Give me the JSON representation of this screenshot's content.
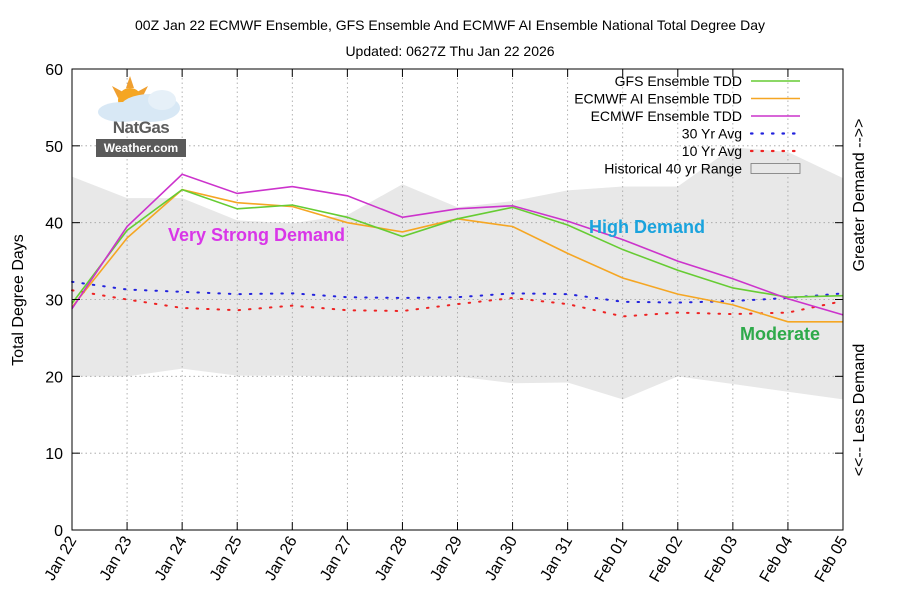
{
  "title": "00Z Jan 22 ECMWF Ensemble, GFS Ensemble And ECMWF AI Ensemble National Total Degree Day",
  "subtitle": "Updated: 0627Z Thu Jan 22 2026",
  "logo": {
    "line1": "NatGas",
    "line2": "Weather.com"
  },
  "annotations": {
    "very_strong": "Very Strong Demand",
    "high": "High Demand",
    "moderate": "Moderate",
    "greater": "Greater Demand -->>",
    "less": "<<-- Less Demand"
  },
  "colors": {
    "gfs": "#66cc33",
    "ecmwf_ai": "#f5a623",
    "ecmwf": "#cc33cc",
    "avg30": "#2222dd",
    "avg10": "#ee2222",
    "range": "#e8e8e8",
    "very_strong": "#d936e8",
    "high": "#1aa3dd",
    "moderate": "#2eaa4a"
  },
  "chart_data": {
    "type": "line",
    "categories": [
      "Jan 22",
      "Jan 23",
      "Jan 24",
      "Jan 25",
      "Jan 26",
      "Jan 27",
      "Jan 28",
      "Jan 29",
      "Jan 30",
      "Jan 31",
      "Feb 01",
      "Feb 02",
      "Feb 03",
      "Feb 04",
      "Feb 05"
    ],
    "ylabel": "Total Degree Days",
    "ylim": [
      0,
      60
    ],
    "yticks": [
      0,
      10,
      20,
      30,
      40,
      50,
      60
    ],
    "grid": true,
    "legend_position": "top-right",
    "series": [
      {
        "name": "GFS Ensemble TDD",
        "style": "solid",
        "values": [
          29.5,
          39.0,
          44.3,
          41.8,
          42.3,
          40.7,
          38.2,
          40.5,
          42.0,
          39.7,
          36.5,
          33.8,
          31.5,
          30.3,
          30.5
        ]
      },
      {
        "name": "ECMWF AI Ensemble TDD",
        "style": "solid",
        "values": [
          29.0,
          38.0,
          44.3,
          42.6,
          42.1,
          40.0,
          38.8,
          40.5,
          39.5,
          36.0,
          32.8,
          30.7,
          29.3,
          27.1,
          27.1
        ]
      },
      {
        "name": "ECMWF Ensemble TDD",
        "style": "solid",
        "values": [
          28.8,
          39.5,
          46.3,
          43.8,
          44.7,
          43.5,
          40.7,
          41.8,
          42.2,
          40.2,
          37.8,
          35.0,
          32.7,
          30.1,
          28.0
        ]
      },
      {
        "name": "30 Yr Avg",
        "style": "dotted",
        "values": [
          32.3,
          31.3,
          31.0,
          30.7,
          30.8,
          30.3,
          30.2,
          30.3,
          30.8,
          30.7,
          29.7,
          29.6,
          29.8,
          30.2,
          30.8
        ]
      },
      {
        "name": "10 Yr Avg",
        "style": "dotted",
        "values": [
          31.2,
          30.0,
          28.9,
          28.6,
          29.2,
          28.6,
          28.5,
          29.4,
          30.2,
          29.4,
          27.8,
          28.3,
          28.1,
          28.3,
          29.8
        ]
      }
    ],
    "range": {
      "name": "Historical 40 yr Range",
      "high": [
        46.0,
        43.2,
        43.2,
        40.3,
        39.9,
        41.0,
        45.0,
        42.0,
        42.8,
        44.2,
        44.7,
        44.7,
        49.8,
        49.2,
        45.8
      ],
      "low": [
        20.0,
        20.0,
        21.0,
        20.1,
        20.1,
        19.9,
        20.0,
        20.0,
        19.1,
        19.2,
        17.0,
        20.0,
        19.0,
        18.0,
        17.0
      ]
    }
  }
}
